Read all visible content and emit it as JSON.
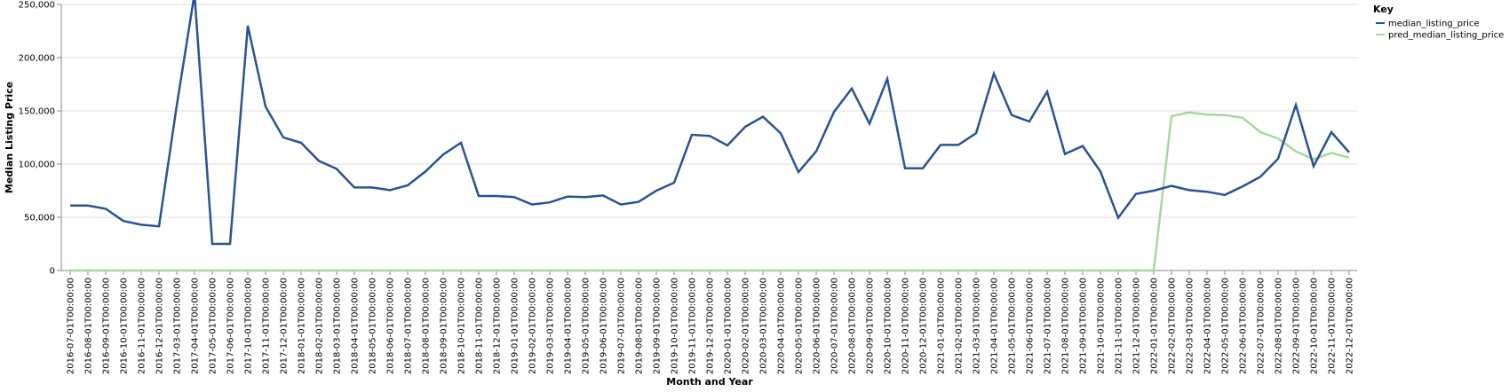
{
  "chart_data": {
    "type": "line",
    "xlabel": "Month and Year",
    "ylabel": "Median Listing Price",
    "ylim": [
      0,
      250000
    ],
    "yticks": [
      0,
      50000,
      100000,
      150000,
      200000,
      250000
    ],
    "ytick_labels": [
      "0",
      "50,000",
      "100,000",
      "150,000",
      "200,000",
      "250,000"
    ],
    "grid": true,
    "legend_title": "Key",
    "legend_position": "top-right",
    "x": [
      "2016-07-01T00:00:00",
      "2016-08-01T00:00:00",
      "2016-09-01T00:00:00",
      "2016-10-01T00:00:00",
      "2016-11-01T00:00:00",
      "2016-12-01T00:00:00",
      "2017-03-01T00:00:00",
      "2017-04-01T00:00:00",
      "2017-05-01T00:00:00",
      "2017-06-01T00:00:00",
      "2017-10-01T00:00:00",
      "2017-11-01T00:00:00",
      "2017-12-01T00:00:00",
      "2018-01-01T00:00:00",
      "2018-02-01T00:00:00",
      "2018-03-01T00:00:00",
      "2018-04-01T00:00:00",
      "2018-05-01T00:00:00",
      "2018-06-01T00:00:00",
      "2018-07-01T00:00:00",
      "2018-08-01T00:00:00",
      "2018-09-01T00:00:00",
      "2018-10-01T00:00:00",
      "2018-11-01T00:00:00",
      "2018-12-01T00:00:00",
      "2019-01-01T00:00:00",
      "2019-02-01T00:00:00",
      "2019-03-01T00:00:00",
      "2019-04-01T00:00:00",
      "2019-05-01T00:00:00",
      "2019-06-01T00:00:00",
      "2019-07-01T00:00:00",
      "2019-08-01T00:00:00",
      "2019-09-01T00:00:00",
      "2019-10-01T00:00:00",
      "2019-11-01T00:00:00",
      "2019-12-01T00:00:00",
      "2020-01-01T00:00:00",
      "2020-02-01T00:00:00",
      "2020-03-01T00:00:00",
      "2020-04-01T00:00:00",
      "2020-05-01T00:00:00",
      "2020-06-01T00:00:00",
      "2020-07-01T00:00:00",
      "2020-08-01T00:00:00",
      "2020-09-01T00:00:00",
      "2020-10-01T00:00:00",
      "2020-11-01T00:00:00",
      "2020-12-01T00:00:00",
      "2021-01-01T00:00:00",
      "2021-02-01T00:00:00",
      "2021-03-01T00:00:00",
      "2021-04-01T00:00:00",
      "2021-05-01T00:00:00",
      "2021-06-01T00:00:00",
      "2021-07-01T00:00:00",
      "2021-08-01T00:00:00",
      "2021-09-01T00:00:00",
      "2021-10-01T00:00:00",
      "2021-11-01T00:00:00",
      "2021-12-01T00:00:00",
      "2022-01-01T00:00:00",
      "2022-02-01T00:00:00",
      "2022-03-01T00:00:00",
      "2022-04-01T00:00:00",
      "2022-05-01T00:00:00",
      "2022-06-01T00:00:00",
      "2022-07-01T00:00:00",
      "2022-08-01T00:00:00",
      "2022-09-01T00:00:00",
      "2022-10-01T00:00:00",
      "2022-11-01T00:00:00",
      "2022-12-01T00:00:00"
    ],
    "series": [
      {
        "name": "median_listing_price",
        "color": "#2a5298",
        "values": [
          61000,
          61000,
          58000,
          46500,
          43000,
          41500,
          155000,
          260000,
          25000,
          25000,
          230000,
          154000,
          125000,
          120000,
          103000,
          95500,
          78000,
          78000,
          75500,
          80000,
          93000,
          109000,
          120000,
          70000,
          70000,
          69000,
          62000,
          64000,
          69500,
          69000,
          70500,
          62000,
          64500,
          75000,
          82500,
          127500,
          126500,
          117500,
          135000,
          144500,
          129000,
          92500,
          112000,
          149000,
          171000,
          138000,
          180000,
          96000,
          96000,
          118000,
          118000,
          129000,
          185000,
          146000,
          140000,
          168000,
          109500,
          117000,
          93000,
          49500,
          72000,
          75000,
          79500,
          75500,
          74000,
          71000,
          79000,
          88000,
          105000,
          155500,
          98000,
          130000,
          111000
        ]
      },
      {
        "name": "pred_median_listing_price",
        "color": "#a6d8a0",
        "values": [
          0,
          0,
          0,
          0,
          0,
          0,
          0,
          0,
          0,
          0,
          0,
          0,
          0,
          0,
          0,
          0,
          0,
          0,
          0,
          0,
          0,
          0,
          0,
          0,
          0,
          0,
          0,
          0,
          0,
          0,
          0,
          0,
          0,
          0,
          0,
          0,
          0,
          0,
          0,
          0,
          0,
          0,
          0,
          0,
          0,
          0,
          0,
          0,
          0,
          0,
          0,
          0,
          0,
          0,
          0,
          0,
          0,
          0,
          0,
          0,
          0,
          0,
          145000,
          148500,
          146500,
          146000,
          143500,
          130000,
          124000,
          112000,
          104500,
          110500,
          106000
        ]
      }
    ]
  }
}
